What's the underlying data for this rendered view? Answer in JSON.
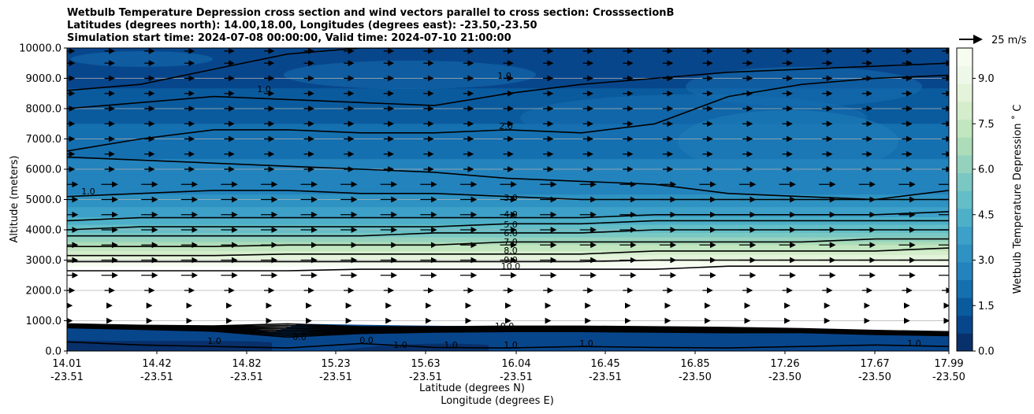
{
  "title": {
    "line1": "Wetbulb Temperature Depression cross section and wind vectors parallel to cross section: CrosssectionB",
    "line2": "Latitudes (degrees north): 14.00,18.00, Longitudes (degrees east): -23.50,-23.50",
    "line3": "Simulation start time: 2024-07-08 00:00:00, Valid time: 2024-07-10 21:00:00"
  },
  "chart_data": {
    "type": "heatmap",
    "subtype": "filled contour cross section with wind vectors",
    "ylabel": "Altitude (meters)",
    "xlabel_lat": "Latitude (degrees N)",
    "xlabel_lon": "Longitude (degrees E)",
    "ylim": [
      0,
      10000
    ],
    "y_ticks": [
      "0.0",
      "1000.0",
      "2000.0",
      "3000.0",
      "4000.0",
      "5000.0",
      "6000.0",
      "7000.0",
      "8000.0",
      "9000.0",
      "10000.0"
    ],
    "y_tick_values": [
      0,
      1000,
      2000,
      3000,
      4000,
      5000,
      6000,
      7000,
      8000,
      9000,
      10000
    ],
    "x_ticks_lat": [
      "14.01",
      "14.42",
      "14.82",
      "15.23",
      "15.63",
      "16.04",
      "16.45",
      "16.85",
      "17.26",
      "17.67",
      "17.99"
    ],
    "x_ticks_lon": [
      "-23.51",
      "-23.51",
      "-23.51",
      "-23.51",
      "-23.51",
      "-23.51",
      "-23.51",
      "-23.50",
      "-23.50",
      "-23.50",
      "-23.50"
    ],
    "colorbar": {
      "label": "Wetbulb Temperature Depression $^\\circ$C",
      "label_text": "Wetbulb Temperature Depression ˚ C",
      "range": [
        0,
        10
      ],
      "ticks": [
        "0.0",
        "1.5",
        "3.0",
        "4.5",
        "6.0",
        "7.5",
        "9.0"
      ],
      "tick_values": [
        0,
        1.5,
        3.0,
        4.5,
        6.0,
        7.5,
        9.0
      ],
      "colormap": "GnBu_r",
      "colors": [
        "#08306b",
        "#08468c",
        "#0a5b9e",
        "#1570b0",
        "#2383bd",
        "#2e92c2",
        "#3da0c8",
        "#4eb0c8",
        "#63bec7",
        "#7bc8c3",
        "#95d2bd",
        "#acdcb8",
        "#c2e6bf",
        "#d4edcb",
        "#e3f4da",
        "#eef8e8",
        "#f7fcf0"
      ]
    },
    "wind_key": {
      "label": "25 m/s",
      "speed": 25
    },
    "contour_levels_labeled": [
      "1.0",
      "1.0",
      "2.0",
      "3.0",
      "3.0",
      "4.0",
      "5.0",
      "6.0",
      "7.0",
      "8.0",
      "9.0",
      "10.0",
      "0.0",
      "10.0",
      "1.0",
      "1.0",
      "1.0",
      "1.0",
      "1.0"
    ],
    "grid": true,
    "upper_layer_depression": [
      {
        "altitude": 10000,
        "value": 0.8
      },
      {
        "altitude": 9000,
        "value": 1.0
      },
      {
        "altitude": 8000,
        "value": 1.5
      },
      {
        "altitude": 7000,
        "value": 2.0
      },
      {
        "altitude": 6000,
        "value": 2.5
      },
      {
        "altitude": 5000,
        "value": 3.0
      },
      {
        "altitude": 4500,
        "value": 4.0
      },
      {
        "altitude": 4000,
        "value": 5.0
      },
      {
        "altitude": 3700,
        "value": 6.0
      },
      {
        "altitude": 3500,
        "value": 7.0
      },
      {
        "altitude": 3200,
        "value": 8.0
      },
      {
        "altitude": 3000,
        "value": 9.0
      },
      {
        "altitude": 2800,
        "value": 10.0
      }
    ]
  }
}
